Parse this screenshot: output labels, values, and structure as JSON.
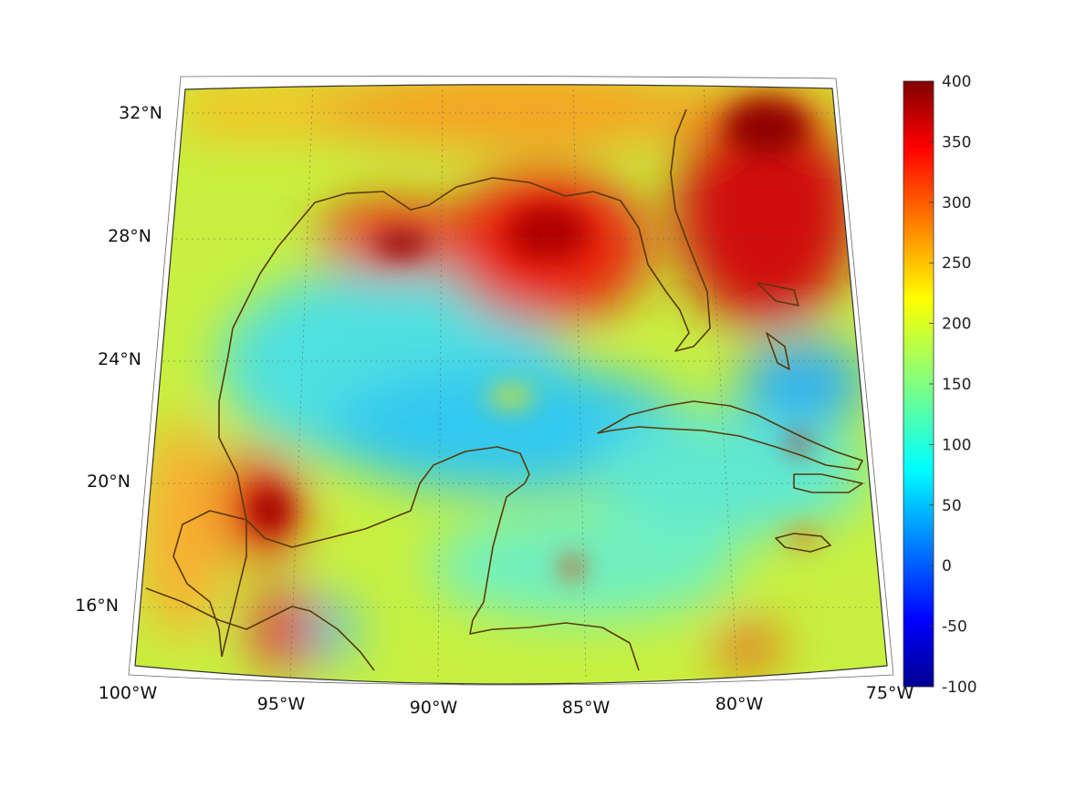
{
  "map": {
    "projection": "conic",
    "lon_labels": [
      "100°W",
      "95°W",
      "90°W",
      "85°W",
      "80°W",
      "75°W"
    ],
    "lat_labels": [
      "16°N",
      "20°N",
      "24°N",
      "28°N",
      "32°N"
    ],
    "lon_values": [
      -100,
      -95,
      -90,
      -85,
      -80,
      -75
    ],
    "lat_values": [
      16,
      20,
      24,
      28,
      32
    ],
    "coastline_color": "#5a3a0a",
    "grid": "dotted"
  },
  "colorbar": {
    "colormap": "jet",
    "min": -100,
    "max": 400,
    "tick_labels": [
      "400",
      "350",
      "300",
      "250",
      "200",
      "150",
      "100",
      "50",
      "0",
      "-50",
      "-100"
    ],
    "tick_values": [
      400,
      350,
      300,
      250,
      200,
      150,
      100,
      50,
      0,
      -50,
      -100
    ]
  },
  "colors": {
    "background": "#ffffff",
    "high": "#800000",
    "mid": "#c8f040",
    "low": "#00008f"
  }
}
